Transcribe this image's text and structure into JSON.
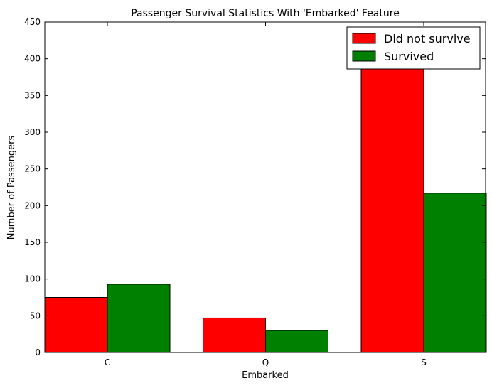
{
  "chart_data": {
    "type": "bar",
    "title": "Passenger Survival Statistics With 'Embarked' Feature",
    "xlabel": "Embarked",
    "ylabel": "Number of Passengers",
    "categories": [
      "C",
      "Q",
      "S"
    ],
    "series": [
      {
        "name": "Did not survive",
        "color": "#ff0000",
        "values": [
          75,
          47,
          427
        ]
      },
      {
        "name": "Survived",
        "color": "#008000",
        "values": [
          93,
          30,
          217
        ]
      }
    ],
    "ylim": [
      0,
      450
    ],
    "yticks": [
      0,
      50,
      100,
      150,
      200,
      250,
      300,
      350,
      400,
      450
    ],
    "legend_position": "top-right",
    "grid": false
  }
}
